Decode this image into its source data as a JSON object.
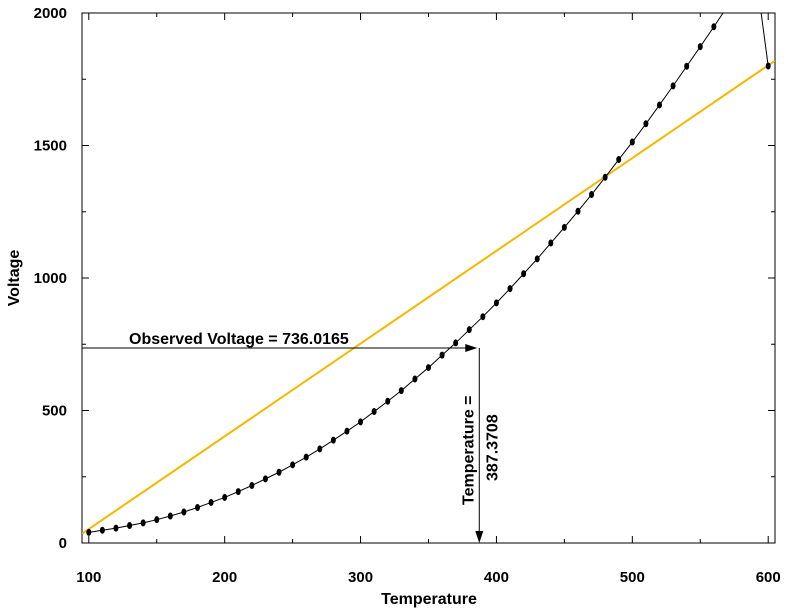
{
  "chart_data": {
    "type": "line",
    "title": "",
    "xlabel": "Temperature",
    "ylabel": "Voltage",
    "xlim": [
      95,
      605
    ],
    "ylim": [
      0,
      2000
    ],
    "x_ticks": [
      100,
      200,
      300,
      400,
      500,
      600
    ],
    "y_ticks": [
      0,
      500,
      1000,
      1500,
      2000
    ],
    "grid": false,
    "series": [
      {
        "kind": "line",
        "color": "#F5B800",
        "x": [
          95,
          605
        ],
        "y": [
          35,
          1820
        ]
      },
      {
        "kind": "line+markers",
        "color": "#000000",
        "x": [
          100,
          110,
          120,
          130,
          140,
          150,
          160,
          170,
          180,
          190,
          200,
          210,
          220,
          230,
          240,
          250,
          260,
          270,
          280,
          290,
          300,
          310,
          320,
          330,
          340,
          350,
          360,
          370,
          380,
          390,
          400,
          410,
          420,
          430,
          440,
          450,
          460,
          470,
          480,
          490,
          500,
          510,
          520,
          530,
          540,
          550,
          560,
          570,
          580,
          590,
          600
        ],
        "y": [
          40,
          48,
          56,
          66,
          76,
          88,
          102,
          117,
          134,
          153,
          172,
          194,
          217,
          242,
          267,
          295,
          324,
          355,
          388,
          422,
          457,
          496,
          535,
          575,
          619,
          662,
          709,
          755,
          805,
          854,
          906,
          960,
          1016,
          1072,
          1132,
          1191,
          1252,
          1315,
          1380,
          1447,
          1513,
          1582,
          1653,
          1725,
          1799,
          1873,
          1948,
          2025,
          2104,
          2184,
          1800
        ]
      }
    ],
    "annotations": {
      "observed_text": "Observed Voltage = 736.0165",
      "temp_line1": "Temperature =",
      "temp_line2": "387.3708",
      "observed_voltage": 736.0165,
      "temperature": 387.3708
    }
  }
}
